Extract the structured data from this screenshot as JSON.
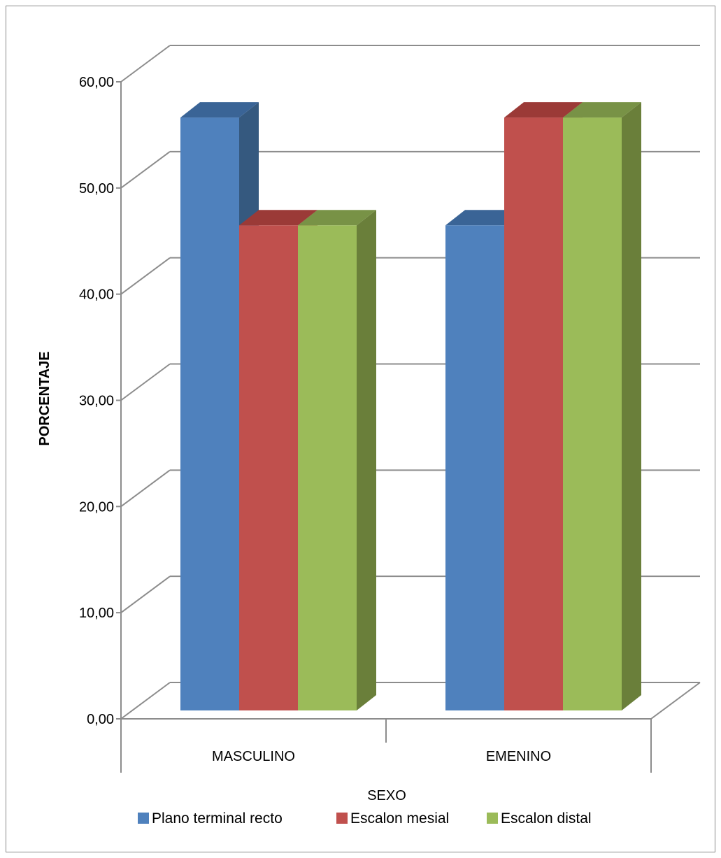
{
  "chart_data": {
    "type": "bar",
    "categories": [
      "MASCULINO",
      "EMENINO"
    ],
    "series": [
      {
        "name": "Plano terminal recto",
        "values": [
          55,
          45
        ],
        "color": "#4F81BD",
        "side": "#35597F",
        "top": "#3A6496"
      },
      {
        "name": "Escalon mesial",
        "values": [
          45,
          55
        ],
        "color": "#C0504D",
        "side": "#8E3532",
        "top": "#9B3A37"
      },
      {
        "name": "Escalon distal",
        "values": [
          45,
          55
        ],
        "color": "#9BBB59",
        "side": "#6A7F3A",
        "top": "#789246"
      }
    ],
    "xlabel": "SEXO",
    "ylabel": "PORCENTAJE",
    "ylim": [
      0,
      60
    ],
    "yticks": [
      "0,00",
      "10,00",
      "20,00",
      "30,00",
      "40,00",
      "50,00",
      "60,00"
    ],
    "grid": true,
    "legend_position": "bottom",
    "style": "3d-clustered-column"
  }
}
